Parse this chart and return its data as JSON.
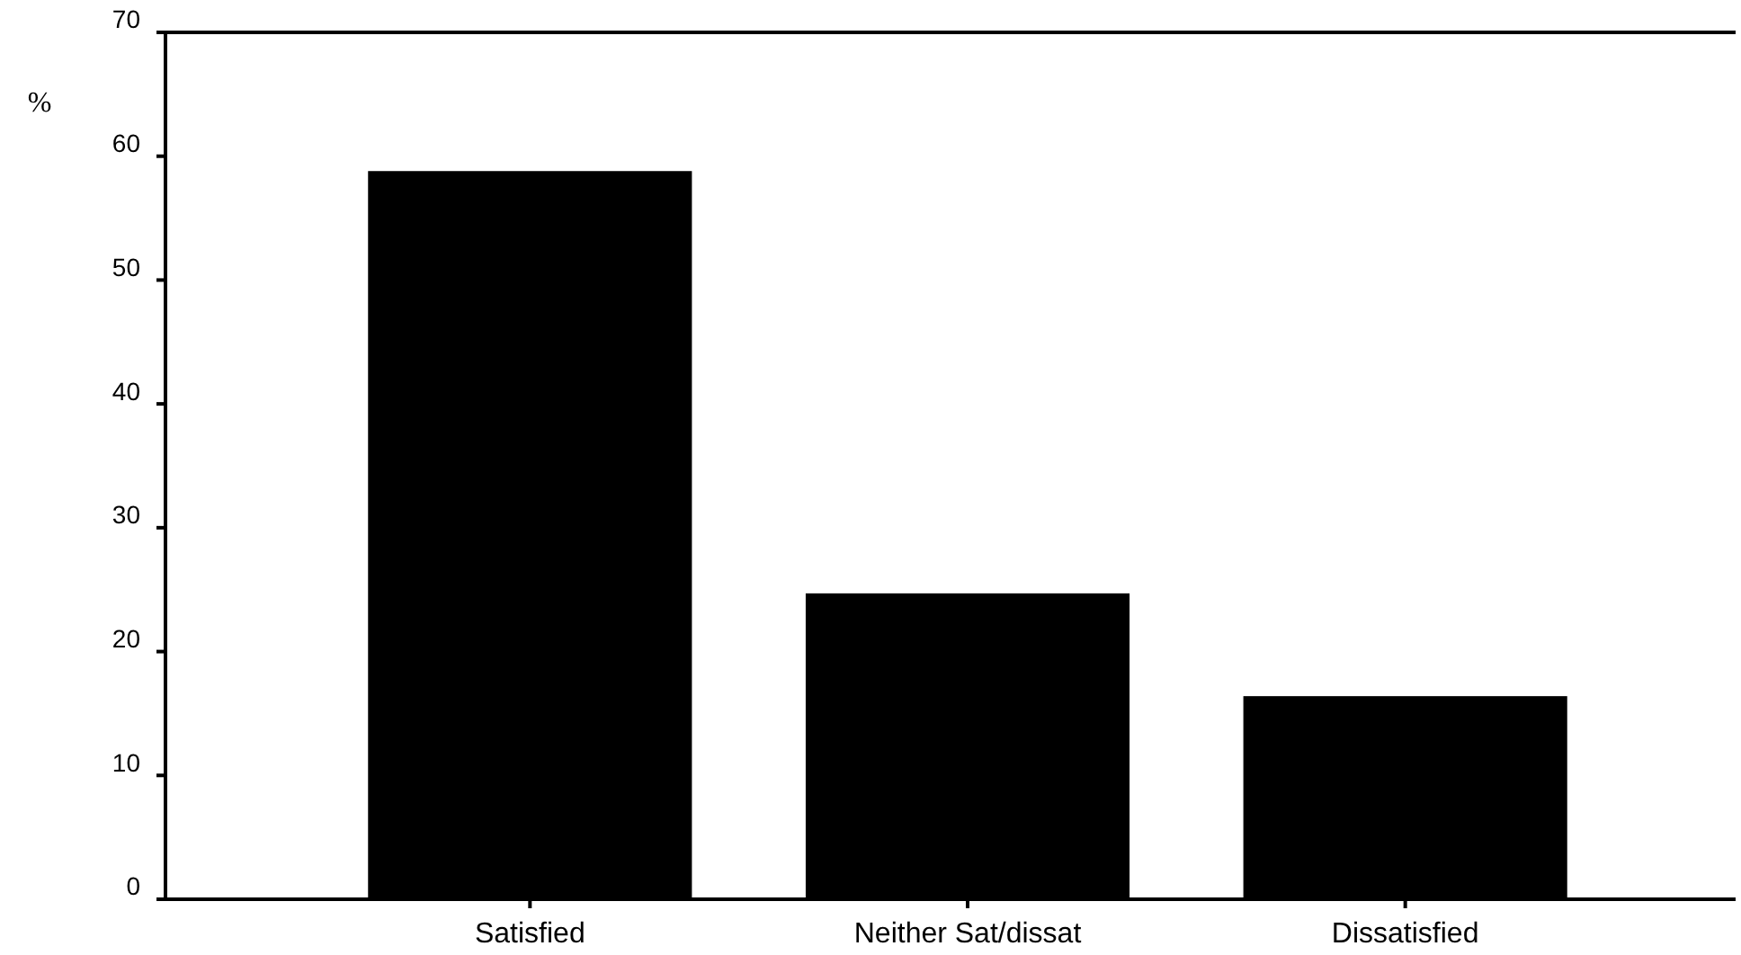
{
  "chart_data": {
    "type": "bar",
    "ylabel": "%",
    "categories": [
      "Satisfied",
      "Neither Sat/dissat",
      "Dissatisfied"
    ],
    "values": [
      58.8,
      24.7,
      16.4
    ],
    "color": "#000000",
    "ylim": [
      0,
      70
    ],
    "yticks": [
      0,
      10,
      20,
      30,
      40,
      50,
      60,
      70
    ],
    "grid": false
  }
}
